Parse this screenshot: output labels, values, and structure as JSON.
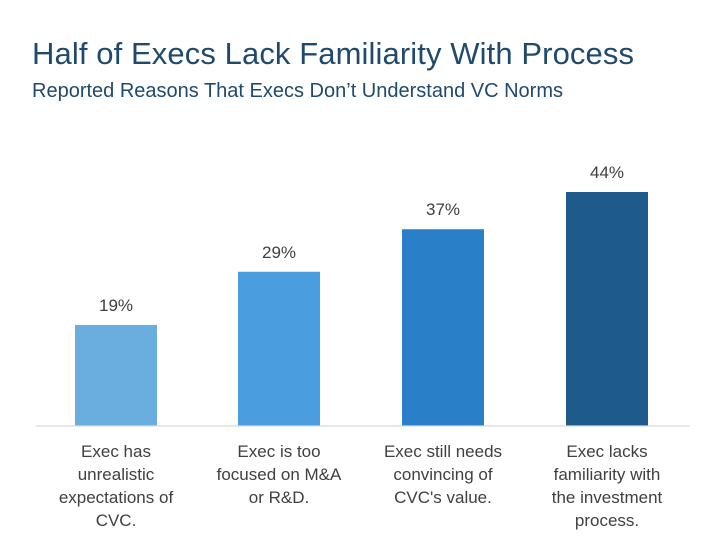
{
  "chart_data": {
    "type": "bar",
    "title": "Half of Execs Lack Familiarity With Process",
    "subtitle": "Reported Reasons That Execs Don’t Understand VC Norms",
    "categories": [
      "Exec has unrealistic expectations of CVC.",
      "Exec is too focused on M&A or R&D.",
      "Exec still needs convincing of CVC's value.",
      "Exec lacks familiarity with the investment process."
    ],
    "category_lines": [
      [
        "Exec has",
        "unrealistic",
        "expectations of",
        "CVC."
      ],
      [
        "Exec is too",
        "focused on M&A",
        "or R&D."
      ],
      [
        "Exec still needs",
        "convincing of",
        "CVC's value."
      ],
      [
        "Exec lacks",
        "familiarity with",
        "the investment",
        "process."
      ]
    ],
    "values": [
      19,
      29,
      37,
      44
    ],
    "value_labels": [
      "19%",
      "29%",
      "37%",
      "44%"
    ],
    "bar_colors": [
      "#6aaee0",
      "#4a9ddf",
      "#2a80c8",
      "#1e5a8c"
    ],
    "ylim": [
      0,
      44
    ],
    "grid": false,
    "legend": "none"
  }
}
